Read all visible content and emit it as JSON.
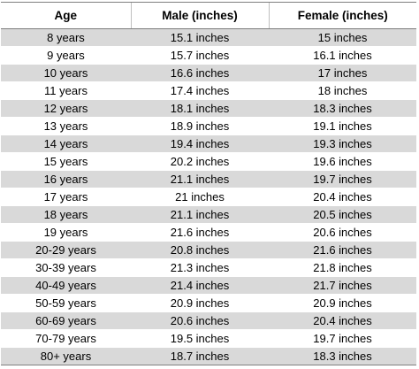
{
  "table": {
    "headers": [
      "Age",
      "Male (inches)",
      "Female (inches)"
    ],
    "rows": [
      [
        "8 years",
        "15.1 inches",
        "15 inches"
      ],
      [
        "9 years",
        "15.7 inches",
        "16.1 inches"
      ],
      [
        "10 years",
        "16.6 inches",
        "17 inches"
      ],
      [
        "11 years",
        "17.4 inches",
        "18 inches"
      ],
      [
        "12 years",
        "18.1 inches",
        "18.3 inches"
      ],
      [
        "13 years",
        "18.9 inches",
        "19.1 inches"
      ],
      [
        "14 years",
        "19.4 inches",
        "19.3 inches"
      ],
      [
        "15 years",
        "20.2 inches",
        "19.6 inches"
      ],
      [
        "16 years",
        "21.1 inches",
        "19.7 inches"
      ],
      [
        "17 years",
        "21 inches",
        "20.4 inches"
      ],
      [
        "18 years",
        "21.1 inches",
        "20.5 inches"
      ],
      [
        "19 years",
        "21.6 inches",
        "20.6 inches"
      ],
      [
        "20-29 years",
        "20.8 inches",
        "21.6 inches"
      ],
      [
        "30-39 years",
        "21.3 inches",
        "21.8 inches"
      ],
      [
        "40-49 years",
        "21.4 inches",
        "21.7 inches"
      ],
      [
        "50-59 years",
        "20.9 inches",
        "20.9 inches"
      ],
      [
        "60-69 years",
        "20.6 inches",
        "20.4 inches"
      ],
      [
        "70-79 years",
        "19.5 inches",
        "19.7 inches"
      ],
      [
        "80+ years",
        "18.7 inches",
        "18.3 inches"
      ]
    ]
  },
  "colors": {
    "band": "#d9d9d9",
    "rule": "#7f7f7f"
  }
}
